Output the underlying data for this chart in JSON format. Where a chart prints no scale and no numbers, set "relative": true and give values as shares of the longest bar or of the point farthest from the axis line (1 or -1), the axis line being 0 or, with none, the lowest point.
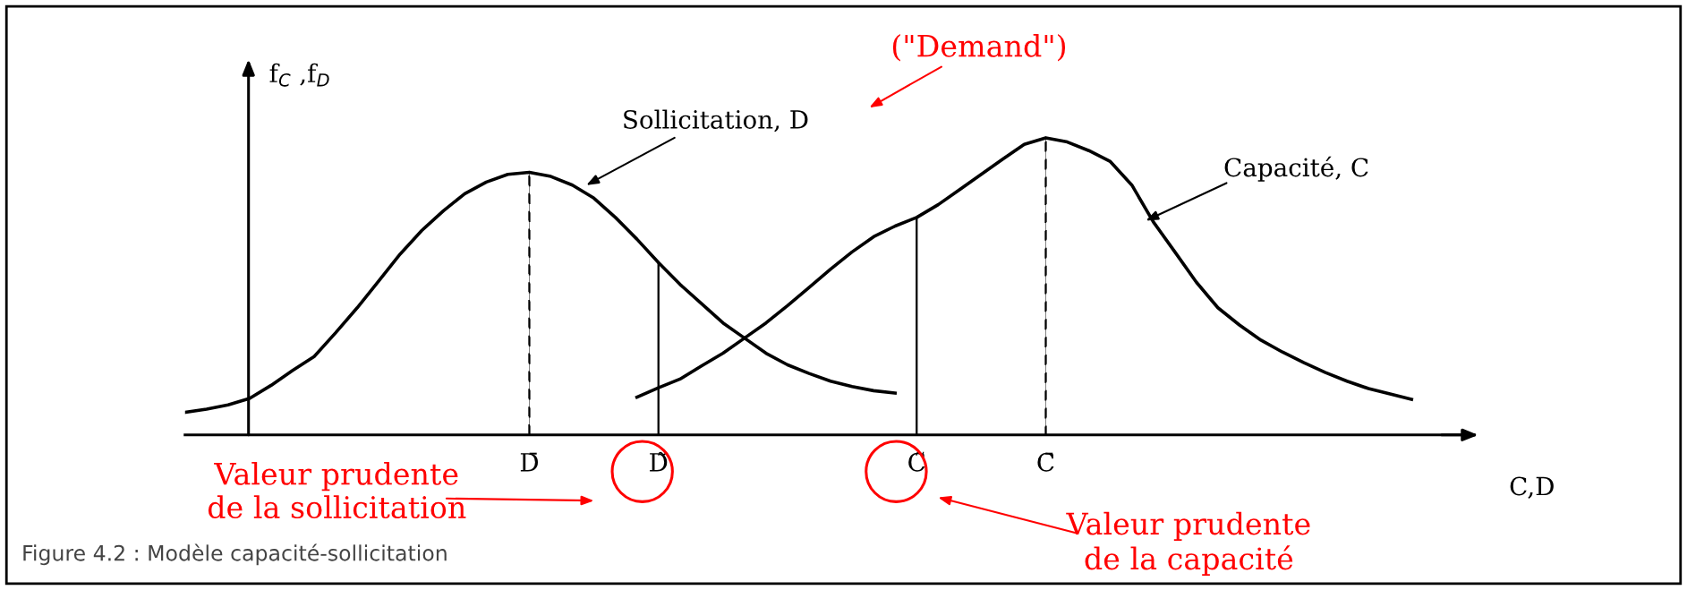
{
  "chart_data": {
    "type": "line",
    "relative": true,
    "xlabel": "C,D",
    "ylabel": "f$_{C}$ ,f$_{D}$",
    "categories": [
      null,
      null,
      null,
      null,
      null,
      null,
      null,
      null,
      null,
      null,
      null,
      null,
      null,
      null,
      null,
      null,
      "D̄",
      null,
      null,
      null,
      null,
      null,
      "D̃",
      null,
      null,
      null,
      null,
      null,
      null,
      null,
      null,
      null,
      null,
      null,
      "C̃",
      null,
      null,
      null,
      null,
      null,
      "C̄",
      null,
      null,
      null,
      null,
      null,
      null,
      null,
      null,
      null,
      null,
      null,
      null,
      null,
      null,
      null,
      null,
      null,
      null,
      null,
      null
    ],
    "grid": false,
    "legend": false,
    "marker": "none",
    "series": [
      {
        "color": "#000000",
        "line_style": "solid",
        "values": [
          0.076,
          0.087,
          0.101,
          0.123,
          0.167,
          0.217,
          0.264,
          0.344,
          0.428,
          0.518,
          0.609,
          0.688,
          0.754,
          0.812,
          0.851,
          0.877,
          0.884,
          0.87,
          0.841,
          0.797,
          0.732,
          0.659,
          0.58,
          0.507,
          0.442,
          0.377,
          0.326,
          0.275,
          0.236,
          0.207,
          0.181,
          0.163,
          0.149,
          0.141,
          null,
          null,
          null,
          null,
          null,
          null,
          null,
          null,
          null,
          null,
          null,
          null,
          null,
          null,
          null,
          null,
          null,
          null,
          null,
          null,
          null,
          null,
          null,
          null,
          null,
          null,
          null
        ]
      },
      {
        "color": "#000000",
        "line_style": "solid",
        "values": [
          null,
          null,
          null,
          null,
          null,
          null,
          null,
          null,
          null,
          null,
          null,
          null,
          null,
          null,
          null,
          null,
          null,
          null,
          null,
          null,
          null,
          0.127,
          0.159,
          0.188,
          0.232,
          0.275,
          0.326,
          0.377,
          0.435,
          0.496,
          0.558,
          0.616,
          0.667,
          0.703,
          0.732,
          0.775,
          0.826,
          0.877,
          0.928,
          0.978,
          1,
          0.986,
          0.957,
          0.92,
          0.841,
          0.717,
          0.616,
          0.514,
          0.428,
          0.37,
          0.319,
          0.279,
          0.243,
          0.21,
          0.181,
          0.156,
          0.138,
          0.12,
          null,
          null,
          null
        ]
      },
      {
        "type": "bar",
        "color": "#000000",
        "line_style": "dashed",
        "values": [
          null,
          null,
          null,
          null,
          null,
          null,
          null,
          null,
          null,
          null,
          null,
          null,
          null,
          null,
          null,
          null,
          0.884,
          null,
          null,
          null,
          null,
          null,
          null,
          null,
          null,
          null,
          null,
          null,
          null,
          null,
          null,
          null,
          null,
          null,
          null,
          null,
          null,
          null,
          null,
          null,
          1,
          null,
          null,
          null,
          null,
          null,
          null,
          null,
          null,
          null,
          null,
          null,
          null,
          null,
          null,
          null,
          null,
          null,
          null,
          null,
          null
        ]
      },
      {
        "type": "bar",
        "color": "#000000",
        "line_style": "solid",
        "values": [
          null,
          null,
          null,
          null,
          null,
          null,
          null,
          null,
          null,
          null,
          null,
          null,
          null,
          null,
          null,
          null,
          null,
          null,
          null,
          null,
          null,
          null,
          0.58,
          null,
          null,
          null,
          null,
          null,
          null,
          null,
          null,
          null,
          null,
          null,
          0.732,
          null,
          null,
          null,
          null,
          null,
          null,
          null,
          null,
          null,
          null,
          null,
          null,
          null,
          null,
          null,
          null,
          null,
          null,
          null,
          null,
          null,
          null,
          null,
          null,
          null,
          null
        ]
      }
    ],
    "annotations": [
      "Sollicitation, D",
      "Capacité, C",
      "(\"Demand\")",
      "Valeur prudente\nde la sollicitation",
      "Valeur prudente\nde la capacité",
      "Figure 4.2 : Modèle capacité-sollicitation"
    ]
  }
}
